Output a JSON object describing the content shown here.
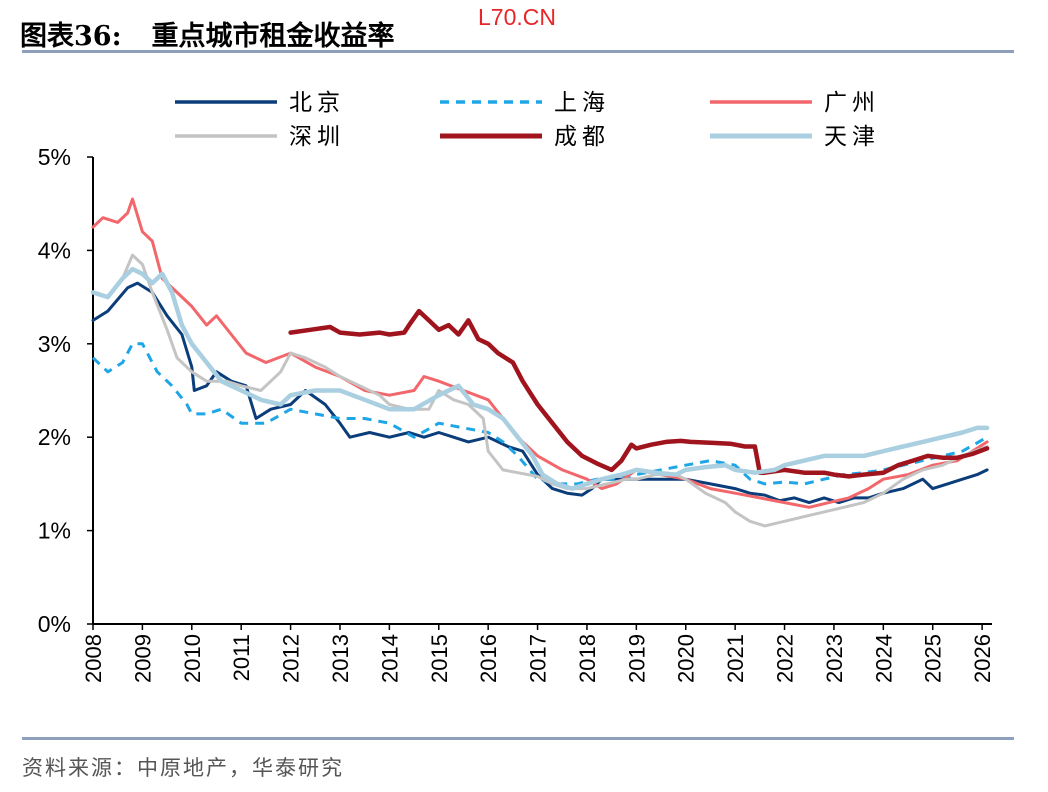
{
  "header": {
    "title_label": "图表36:",
    "title_text": "重点城市租金收益率",
    "watermark": "L70.CN"
  },
  "footer": {
    "source": "资料来源：中原地产，华泰研究"
  },
  "chart_data": {
    "type": "line",
    "title": "重点城市租金收益率",
    "xlabel": "",
    "ylabel": "",
    "xlim": [
      2008.0,
      2026.2
    ],
    "ylim": [
      0,
      5
    ],
    "y_ticks": [
      0,
      1,
      2,
      3,
      4,
      5
    ],
    "y_tick_labels": [
      "0%",
      "1%",
      "2%",
      "3%",
      "4%",
      "5%"
    ],
    "x_ticks": [
      2008,
      2009,
      2010,
      2011,
      2012,
      2013,
      2014,
      2015,
      2016,
      2017,
      2018,
      2019,
      2020,
      2021,
      2022,
      2023,
      2024,
      2025,
      2026
    ],
    "x_tick_labels": [
      "2008",
      "2009",
      "2010",
      "2011",
      "2012",
      "2013",
      "2014",
      "2015",
      "2016",
      "2017",
      "2018",
      "2019",
      "2020",
      "2021",
      "2022",
      "2023",
      "2024",
      "2025",
      "2026"
    ],
    "grid": false,
    "legend_position": "top",
    "series": [
      {
        "name": "北京",
        "color": "#0b3d7a",
        "style": "solid",
        "width": 3,
        "x": [
          2008.0,
          2008.3,
          2008.7,
          2008.9,
          2009.2,
          2009.5,
          2009.8,
          2010.0,
          2010.05,
          2010.3,
          2010.5,
          2010.8,
          2011.1,
          2011.3,
          2011.6,
          2012.0,
          2012.3,
          2012.7,
          2013.0,
          2013.2,
          2013.6,
          2014.0,
          2014.4,
          2014.7,
          2015.0,
          2015.3,
          2015.6,
          2016.0,
          2016.4,
          2016.7,
          2017.0,
          2017.3,
          2017.6,
          2017.9,
          2018.1,
          2018.3,
          2018.6,
          2019.0,
          2019.5,
          2020.0,
          2020.5,
          2021.0,
          2021.3,
          2021.6,
          2021.9,
          2022.2,
          2022.5,
          2022.8,
          2023.1,
          2023.4,
          2023.7,
          2024.0,
          2024.4,
          2024.8,
          2025.0,
          2025.3,
          2025.6,
          2025.9,
          2026.1
        ],
        "y": [
          3.25,
          3.35,
          3.6,
          3.65,
          3.55,
          3.3,
          3.1,
          2.75,
          2.5,
          2.55,
          2.7,
          2.6,
          2.55,
          2.2,
          2.3,
          2.35,
          2.5,
          2.35,
          2.15,
          2.0,
          2.05,
          2.0,
          2.05,
          2.0,
          2.05,
          2.0,
          1.95,
          2.0,
          1.9,
          1.85,
          1.6,
          1.45,
          1.4,
          1.38,
          1.45,
          1.55,
          1.55,
          1.55,
          1.55,
          1.55,
          1.5,
          1.45,
          1.4,
          1.38,
          1.32,
          1.35,
          1.3,
          1.35,
          1.3,
          1.35,
          1.35,
          1.4,
          1.45,
          1.55,
          1.45,
          1.5,
          1.55,
          1.6,
          1.65
        ]
      },
      {
        "name": "上海",
        "color": "#1ea6e6",
        "style": "dashed",
        "width": 3,
        "x": [
          2008.0,
          2008.3,
          2008.6,
          2008.8,
          2009.0,
          2009.3,
          2009.6,
          2009.9,
          2010.0,
          2010.3,
          2010.6,
          2011.0,
          2011.5,
          2012.0,
          2012.5,
          2013.0,
          2013.5,
          2014.0,
          2014.5,
          2015.0,
          2015.5,
          2016.0,
          2016.3,
          2016.6,
          2017.0,
          2017.4,
          2017.8,
          2018.2,
          2018.6,
          2019.0,
          2019.5,
          2020.0,
          2020.5,
          2021.0,
          2021.3,
          2021.6,
          2022.0,
          2022.4,
          2022.8,
          2023.2,
          2023.6,
          2024.0,
          2024.4,
          2024.8,
          2025.2,
          2025.6,
          2026.1
        ],
        "y": [
          2.85,
          2.7,
          2.8,
          3.0,
          3.0,
          2.7,
          2.55,
          2.35,
          2.25,
          2.25,
          2.3,
          2.15,
          2.15,
          2.3,
          2.25,
          2.2,
          2.2,
          2.15,
          2.0,
          2.15,
          2.1,
          2.05,
          1.95,
          1.8,
          1.55,
          1.5,
          1.5,
          1.55,
          1.55,
          1.6,
          1.65,
          1.7,
          1.75,
          1.7,
          1.55,
          1.5,
          1.52,
          1.5,
          1.55,
          1.6,
          1.62,
          1.65,
          1.7,
          1.75,
          1.8,
          1.85,
          2.0
        ]
      },
      {
        "name": "广州",
        "color": "#f2676b",
        "style": "solid",
        "width": 3,
        "x": [
          2008.0,
          2008.2,
          2008.5,
          2008.7,
          2008.8,
          2009.0,
          2009.2,
          2009.4,
          2009.7,
          2010.0,
          2010.3,
          2010.5,
          2010.8,
          2011.1,
          2011.5,
          2012.0,
          2012.5,
          2013.0,
          2013.5,
          2014.0,
          2014.5,
          2014.7,
          2015.0,
          2015.5,
          2016.0,
          2016.3,
          2016.6,
          2017.0,
          2017.5,
          2018.0,
          2018.3,
          2018.6,
          2019.0,
          2019.5,
          2020.0,
          2020.5,
          2021.0,
          2021.5,
          2022.0,
          2022.5,
          2022.9,
          2023.3,
          2023.7,
          2024.0,
          2024.5,
          2025.0,
          2025.5,
          2026.1
        ],
        "y": [
          4.25,
          4.35,
          4.3,
          4.4,
          4.55,
          4.2,
          4.1,
          3.7,
          3.55,
          3.4,
          3.2,
          3.3,
          3.1,
          2.9,
          2.8,
          2.9,
          2.75,
          2.65,
          2.5,
          2.45,
          2.5,
          2.65,
          2.6,
          2.5,
          2.4,
          2.2,
          2.0,
          1.8,
          1.65,
          1.55,
          1.45,
          1.5,
          1.65,
          1.6,
          1.55,
          1.45,
          1.4,
          1.35,
          1.3,
          1.25,
          1.3,
          1.35,
          1.45,
          1.55,
          1.6,
          1.7,
          1.75,
          1.95
        ]
      },
      {
        "name": "深圳",
        "color": "#c4c4c4",
        "style": "solid",
        "width": 3,
        "x": [
          2008.0,
          2008.3,
          2008.6,
          2008.8,
          2009.0,
          2009.2,
          2009.5,
          2009.7,
          2010.0,
          2010.3,
          2010.7,
          2011.0,
          2011.4,
          2011.8,
          2012.0,
          2012.3,
          2012.7,
          2013.0,
          2013.4,
          2013.8,
          2014.0,
          2014.4,
          2014.8,
          2015.0,
          2015.3,
          2015.6,
          2015.9,
          2016.0,
          2016.3,
          2016.6,
          2017.0,
          2017.3,
          2017.6,
          2018.0,
          2018.4,
          2018.8,
          2019.0,
          2019.4,
          2019.8,
          2020.0,
          2020.4,
          2020.8,
          2021.0,
          2021.3,
          2021.6,
          2022.0,
          2022.4,
          2022.8,
          2023.2,
          2023.6,
          2024.0,
          2024.4,
          2024.8,
          2025.2,
          2025.6,
          2026.1
        ],
        "y": [
          3.55,
          3.5,
          3.7,
          3.95,
          3.85,
          3.55,
          3.15,
          2.85,
          2.7,
          2.6,
          2.6,
          2.55,
          2.5,
          2.7,
          2.9,
          2.85,
          2.75,
          2.65,
          2.55,
          2.45,
          2.35,
          2.3,
          2.3,
          2.5,
          2.4,
          2.35,
          2.2,
          1.85,
          1.65,
          1.62,
          1.58,
          1.5,
          1.45,
          1.45,
          1.5,
          1.55,
          1.55,
          1.6,
          1.6,
          1.55,
          1.4,
          1.3,
          1.2,
          1.1,
          1.05,
          1.1,
          1.15,
          1.2,
          1.25,
          1.3,
          1.4,
          1.55,
          1.65,
          1.7,
          1.8,
          1.9
        ]
      },
      {
        "name": "成都",
        "color": "#a0141e",
        "style": "solid",
        "width": 4.5,
        "x": [
          2012.0,
          2012.4,
          2012.8,
          2013.0,
          2013.4,
          2013.8,
          2014.0,
          2014.3,
          2014.4,
          2014.6,
          2014.8,
          2015.0,
          2015.2,
          2015.4,
          2015.6,
          2015.8,
          2016.0,
          2016.2,
          2016.5,
          2016.7,
          2017.0,
          2017.3,
          2017.6,
          2017.9,
          2018.2,
          2018.5,
          2018.7,
          2018.9,
          2019.0,
          2019.3,
          2019.6,
          2019.9,
          2020.1,
          2020.5,
          2020.9,
          2021.2,
          2021.4,
          2021.5,
          2021.6,
          2022.0,
          2022.4,
          2022.8,
          2023.0,
          2023.3,
          2023.6,
          2024.0,
          2024.3,
          2024.6,
          2024.9,
          2025.2,
          2025.5,
          2025.8,
          2026.1
        ],
        "y": [
          3.12,
          3.15,
          3.18,
          3.12,
          3.1,
          3.12,
          3.1,
          3.12,
          3.2,
          3.35,
          3.25,
          3.15,
          3.2,
          3.1,
          3.25,
          3.05,
          3.0,
          2.9,
          2.8,
          2.6,
          2.35,
          2.15,
          1.95,
          1.8,
          1.72,
          1.65,
          1.75,
          1.92,
          1.88,
          1.92,
          1.95,
          1.96,
          1.95,
          1.94,
          1.93,
          1.9,
          1.9,
          1.62,
          1.62,
          1.65,
          1.62,
          1.62,
          1.6,
          1.58,
          1.6,
          1.62,
          1.7,
          1.75,
          1.8,
          1.78,
          1.78,
          1.82,
          1.88
        ]
      },
      {
        "name": "天津",
        "color": "#a9cfe0",
        "style": "solid",
        "width": 4.5,
        "x": [
          2008.0,
          2008.3,
          2008.6,
          2008.8,
          2009.0,
          2009.2,
          2009.4,
          2009.6,
          2009.8,
          2010.0,
          2010.3,
          2010.6,
          2011.0,
          2011.4,
          2011.8,
          2012.0,
          2012.5,
          2013.0,
          2013.5,
          2014.0,
          2014.5,
          2015.0,
          2015.4,
          2015.7,
          2016.0,
          2016.3,
          2016.6,
          2016.9,
          2017.1,
          2017.4,
          2017.7,
          2018.0,
          2018.3,
          2018.7,
          2019.0,
          2019.4,
          2019.8,
          2020.0,
          2020.4,
          2020.8,
          2021.0,
          2021.4,
          2021.8,
          2022.0,
          2022.4,
          2022.8,
          2023.2,
          2023.6,
          2024.0,
          2024.4,
          2024.8,
          2025.2,
          2025.6,
          2025.9,
          2026.1
        ],
        "y": [
          3.55,
          3.5,
          3.7,
          3.8,
          3.75,
          3.65,
          3.75,
          3.55,
          3.2,
          3.0,
          2.8,
          2.6,
          2.5,
          2.4,
          2.35,
          2.45,
          2.5,
          2.5,
          2.4,
          2.3,
          2.3,
          2.45,
          2.55,
          2.35,
          2.3,
          2.2,
          2.0,
          1.8,
          1.6,
          1.5,
          1.45,
          1.5,
          1.55,
          1.6,
          1.65,
          1.62,
          1.6,
          1.65,
          1.68,
          1.7,
          1.65,
          1.62,
          1.65,
          1.7,
          1.75,
          1.8,
          1.8,
          1.8,
          1.85,
          1.9,
          1.95,
          2.0,
          2.05,
          2.1,
          2.1
        ]
      }
    ]
  }
}
